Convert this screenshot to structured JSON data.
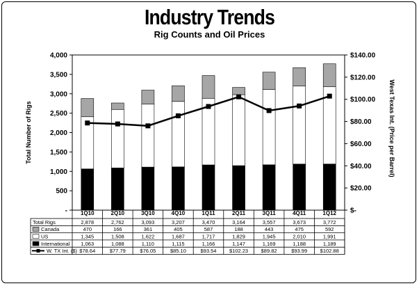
{
  "title": "Industry Trends",
  "subtitle": "Rig Counts and Oil Prices",
  "chart_data": {
    "type": "bar",
    "categories": [
      "1Q10",
      "2Q10",
      "3Q10",
      "4Q10",
      "1Q11",
      "2Q11",
      "3Q11",
      "4Q11",
      "1Q12"
    ],
    "ylabel": "Total Number of Rigs",
    "y2label": "West Texas Int. (Price per Barrel)",
    "ylim": [
      0,
      4000
    ],
    "y2lim": [
      0,
      140
    ],
    "yticks": [
      "-",
      "500",
      "1,000",
      "1,500",
      "2,000",
      "2,500",
      "3,000",
      "3,500",
      "4,000"
    ],
    "y2ticks": [
      "$-",
      "$20.00",
      "$40.00",
      "$60.00",
      "$80.00",
      "$100.00",
      "$120.00",
      "$140.00"
    ],
    "total_label": "Total Rigs",
    "totals": [
      "2,878",
      "2,762",
      "3,093",
      "3,207",
      "3,470",
      "3,164",
      "3,557",
      "3,673",
      "3,772"
    ],
    "series": [
      {
        "name": "International",
        "type": "bar",
        "color": "#000000",
        "values": [
          1063,
          1088,
          1110,
          1115,
          1166,
          1147,
          1169,
          1188,
          1189
        ],
        "labels": [
          "1,063",
          "1,088",
          "1,110",
          "1,115",
          "1,166",
          "1,147",
          "1,169",
          "1,188",
          "1,189"
        ]
      },
      {
        "name": "US",
        "type": "bar",
        "color": "#ffffff",
        "values": [
          1345,
          1508,
          1622,
          1687,
          1717,
          1829,
          1945,
          2010,
          1991
        ],
        "labels": [
          "1,345",
          "1,508",
          "1,622",
          "1,687",
          "1,717",
          "1,829",
          "1,945",
          "2,010",
          "1,991"
        ]
      },
      {
        "name": "Canada",
        "type": "bar",
        "color": "#a6a6a6",
        "values": [
          470,
          166,
          361,
          405,
          587,
          188,
          443,
          475,
          592
        ],
        "labels": [
          "470",
          "166",
          "361",
          "405",
          "587",
          "188",
          "443",
          "475",
          "592"
        ]
      },
      {
        "name": "W. TX Int. ($)",
        "type": "line",
        "axis": "right",
        "color": "#000000",
        "values": [
          78.64,
          77.79,
          76.05,
          85.1,
          93.54,
          102.23,
          89.82,
          93.99,
          102.88
        ],
        "labels": [
          "$78.64",
          "$77.79",
          "$76.05",
          "$85.10",
          "$93.54",
          "$102.23",
          "$89.82",
          "$93.99",
          "$102.88"
        ]
      }
    ]
  }
}
